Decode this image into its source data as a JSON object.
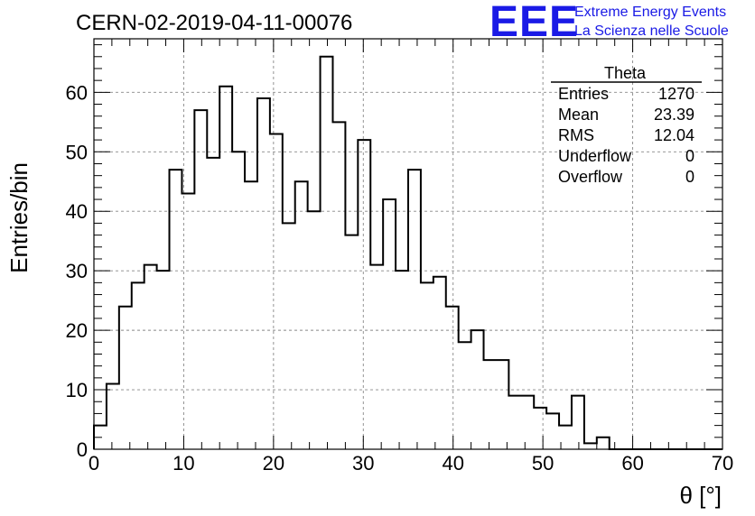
{
  "title": "CERN-02-2019-04-11-00076",
  "logo": {
    "mark": "EEE",
    "line1": "Extreme Energy Events",
    "line2": "La Scienza nelle Scuole"
  },
  "stats_box": {
    "name": "Theta",
    "rows": [
      {
        "label": "Entries",
        "value": "1270"
      },
      {
        "label": "Mean",
        "value": "23.39"
      },
      {
        "label": "RMS",
        "value": "12.04"
      },
      {
        "label": "Underflow",
        "value": "0"
      },
      {
        "label": "Overflow",
        "value": "0"
      }
    ]
  },
  "chart_data": {
    "type": "histogram",
    "title": "CERN-02-2019-04-11-00076",
    "xlabel": "θ [°]",
    "ylabel": "Entries/bin",
    "xlim": [
      0,
      70
    ],
    "ylim": [
      0,
      69
    ],
    "x_ticks": [
      0,
      10,
      20,
      30,
      40,
      50,
      60,
      70
    ],
    "y_ticks": [
      0,
      10,
      20,
      30,
      40,
      50,
      60
    ],
    "grid": true,
    "bin_edges_start": 0,
    "bin_width": 1.4,
    "values": [
      4,
      11,
      24,
      28,
      31,
      30,
      47,
      43,
      57,
      49,
      61,
      50,
      45,
      59,
      53,
      38,
      45,
      40,
      66,
      55,
      36,
      52,
      31,
      42,
      30,
      47,
      28,
      29,
      24,
      18,
      20,
      15,
      15,
      9,
      9,
      7,
      6,
      4,
      9,
      1,
      2,
      0,
      0,
      0,
      0,
      0,
      0,
      0,
      0,
      0
    ]
  }
}
